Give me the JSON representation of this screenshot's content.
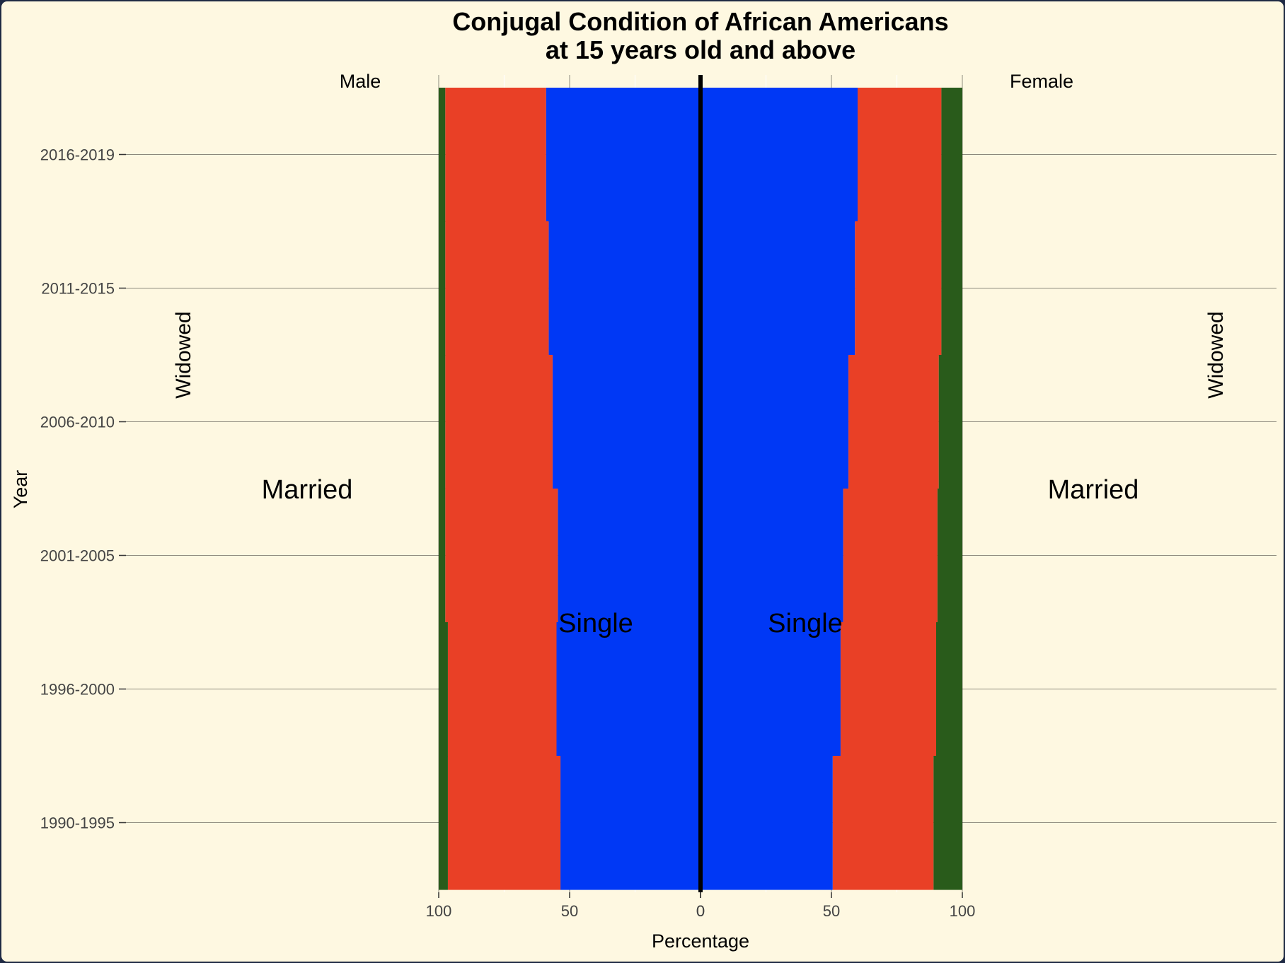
{
  "chart_data": {
    "type": "bar",
    "title_line1": "Conjugal Condition of African Americans",
    "title_line2": "at 15 years old and above",
    "xlabel": "Percentage",
    "ylabel": "Year",
    "xlim": [
      -100,
      100
    ],
    "x_tick_labels": [
      "100",
      "50",
      "0",
      "0",
      "50",
      "100"
    ],
    "panel_labels": {
      "left": "Male",
      "right": "Female"
    },
    "segment_labels": {
      "male_widowed": "Widowed",
      "female_widowed": "Widowed",
      "male_married": "Married",
      "female_married": "Married",
      "male_single": "Single",
      "female_single": "Single"
    },
    "categories": [
      "2016-2019",
      "2011-2015",
      "2006-2010",
      "2001-2005",
      "1996-2000",
      "1990-1995"
    ],
    "series": [
      {
        "name": "Single",
        "group": "Male",
        "values": [
          59,
          58,
          56.5,
          54.5,
          55,
          53.5
        ]
      },
      {
        "name": "Married",
        "group": "Male",
        "values": [
          38.5,
          39.5,
          41,
          43,
          41.5,
          43
        ]
      },
      {
        "name": "Widowed",
        "group": "Male",
        "values": [
          2.5,
          2.5,
          2.5,
          2.5,
          3.5,
          3.5
        ]
      },
      {
        "name": "Single",
        "group": "Female",
        "values": [
          60,
          59,
          56.5,
          54.5,
          53.5,
          50.5
        ]
      },
      {
        "name": "Married",
        "group": "Female",
        "values": [
          32,
          33,
          34.5,
          36,
          36.5,
          38.5
        ]
      },
      {
        "name": "Widowed",
        "group": "Female",
        "values": [
          8,
          8,
          9,
          9.5,
          10,
          11
        ]
      }
    ],
    "colors": {
      "Single": "#0038f5",
      "Married": "#e94026",
      "Widowed": "#295b1b",
      "background": "#fef8e1",
      "frame": "#1f2a44"
    },
    "grid": true,
    "legend": "none"
  }
}
